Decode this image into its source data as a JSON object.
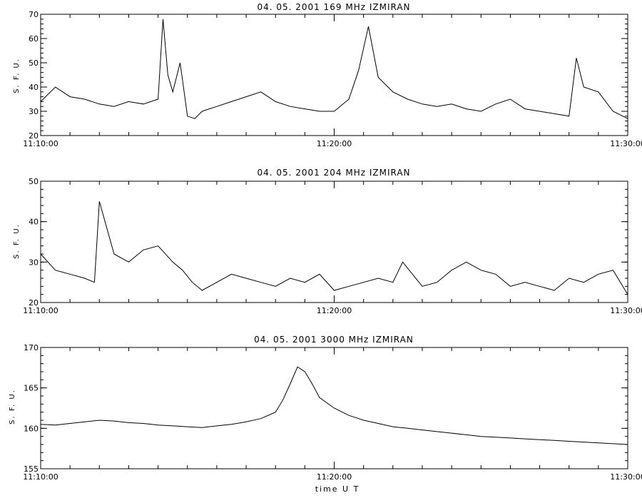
{
  "chart_data": [
    {
      "type": "line",
      "title": "04. 05. 2001   169 MHz   IZMIRAN",
      "ylabel": "S. F. U.",
      "xlabel": "",
      "xlim": [
        "11:10:00",
        "11:30:00"
      ],
      "ylim": [
        20,
        70
      ],
      "y_ticks": [
        "20",
        "30",
        "40",
        "50",
        "60",
        "70"
      ],
      "x_ticks": [
        "11:10:00",
        "11:20:00",
        "11:30:00"
      ],
      "grid": false,
      "series": [
        {
          "x": [
            "11:10:00",
            "11:10:30",
            "11:11:00",
            "11:11:30",
            "11:12:00",
            "11:12:30",
            "11:13:00",
            "11:13:30",
            "11:14:00",
            "11:14:10",
            "11:14:20",
            "11:14:30",
            "11:14:45",
            "11:15:00",
            "11:15:15",
            "11:15:30",
            "11:16:00",
            "11:16:30",
            "11:17:00",
            "11:17:30",
            "11:18:00",
            "11:18:30",
            "11:19:00",
            "11:19:30",
            "11:20:00",
            "11:20:30",
            "11:20:50",
            "11:21:10",
            "11:21:30",
            "11:22:00",
            "11:22:30",
            "11:23:00",
            "11:23:30",
            "11:24:00",
            "11:24:30",
            "11:25:00",
            "11:25:30",
            "11:26:00",
            "11:26:30",
            "11:27:00",
            "11:27:30",
            "11:28:00",
            "11:28:15",
            "11:28:30",
            "11:29:00",
            "11:29:30",
            "11:30:00"
          ],
          "y": [
            34,
            40,
            36,
            35,
            33,
            32,
            34,
            33,
            35,
            68,
            45,
            38,
            50,
            28,
            27,
            30,
            32,
            34,
            36,
            38,
            34,
            32,
            31,
            30,
            30,
            35,
            47,
            65,
            44,
            38,
            35,
            33,
            32,
            33,
            31,
            30,
            33,
            35,
            31,
            30,
            29,
            28,
            52,
            40,
            38,
            30,
            27
          ]
        }
      ]
    },
    {
      "type": "line",
      "title": "04. 05. 2001   204 MHz   IZMIRAN",
      "ylabel": "S. F. U.",
      "xlabel": "",
      "xlim": [
        "11:10:00",
        "11:30:00"
      ],
      "ylim": [
        20,
        50
      ],
      "y_ticks": [
        "20",
        "30",
        "40",
        "50"
      ],
      "x_ticks": [
        "11:10:00",
        "11:20:00",
        "11:30:00"
      ],
      "grid": false,
      "series": [
        {
          "x": [
            "11:10:00",
            "11:10:30",
            "11:11:00",
            "11:11:30",
            "11:11:50",
            "11:12:00",
            "11:12:30",
            "11:13:00",
            "11:13:30",
            "11:14:00",
            "11:14:30",
            "11:14:50",
            "11:15:10",
            "11:15:30",
            "11:16:00",
            "11:16:30",
            "11:17:00",
            "11:17:30",
            "11:18:00",
            "11:18:30",
            "11:19:00",
            "11:19:30",
            "11:20:00",
            "11:20:30",
            "11:21:00",
            "11:21:30",
            "11:22:00",
            "11:22:20",
            "11:22:40",
            "11:23:00",
            "11:23:30",
            "11:24:00",
            "11:24:30",
            "11:25:00",
            "11:25:30",
            "11:26:00",
            "11:26:30",
            "11:27:00",
            "11:27:30",
            "11:28:00",
            "11:28:30",
            "11:29:00",
            "11:29:30",
            "11:30:00"
          ],
          "y": [
            32,
            28,
            27,
            26,
            25,
            45,
            32,
            30,
            33,
            34,
            30,
            28,
            25,
            23,
            25,
            27,
            26,
            25,
            24,
            26,
            25,
            27,
            23,
            24,
            25,
            26,
            25,
            30,
            27,
            24,
            25,
            28,
            30,
            28,
            27,
            24,
            25,
            24,
            23,
            26,
            25,
            27,
            28,
            22
          ]
        }
      ]
    },
    {
      "type": "line",
      "title": "04. 05. 2001   3000 MHz   IZMIRAN",
      "ylabel": "S. F. U.",
      "xlabel": "time  U T",
      "xlim": [
        "11:10:00",
        "11:30:00"
      ],
      "ylim": [
        155,
        170
      ],
      "y_ticks": [
        "155",
        "160",
        "165",
        "170"
      ],
      "x_ticks": [
        "11:10:00",
        "11:20:00",
        "11:30:00"
      ],
      "grid": false,
      "series": [
        {
          "x": [
            "11:10:00",
            "11:10:30",
            "11:11:00",
            "11:11:30",
            "11:12:00",
            "11:12:30",
            "11:13:00",
            "11:13:30",
            "11:14:00",
            "11:14:30",
            "11:15:00",
            "11:15:30",
            "11:16:00",
            "11:16:30",
            "11:17:00",
            "11:17:30",
            "11:18:00",
            "11:18:15",
            "11:18:30",
            "11:18:45",
            "11:19:00",
            "11:19:15",
            "11:19:30",
            "11:20:00",
            "11:20:30",
            "11:21:00",
            "11:21:30",
            "11:22:00",
            "11:22:30",
            "11:23:00",
            "11:23:30",
            "11:24:00",
            "11:24:30",
            "11:25:00",
            "11:25:30",
            "11:26:00",
            "11:26:30",
            "11:27:00",
            "11:27:30",
            "11:28:00",
            "11:28:30",
            "11:29:00",
            "11:29:30",
            "11:30:00"
          ],
          "y": [
            160.5,
            160.4,
            160.6,
            160.8,
            161.0,
            160.9,
            160.7,
            160.6,
            160.4,
            160.3,
            160.2,
            160.1,
            160.3,
            160.5,
            160.8,
            161.2,
            162.0,
            163.5,
            165.5,
            167.6,
            167.0,
            165.5,
            163.8,
            162.5,
            161.6,
            161.0,
            160.6,
            160.2,
            160.0,
            159.8,
            159.6,
            159.4,
            159.2,
            159.0,
            158.9,
            158.8,
            158.7,
            158.6,
            158.5,
            158.4,
            158.3,
            158.2,
            158.1,
            158.0
          ]
        }
      ]
    }
  ]
}
